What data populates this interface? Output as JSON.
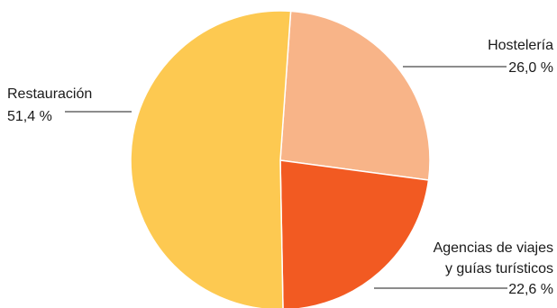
{
  "chart_data": {
    "type": "pie",
    "title": "",
    "start_angle_deg": 4,
    "direction": "clockwise",
    "slices": [
      {
        "label": "Hostelería",
        "label_lines": [
          "Hostelería"
        ],
        "value": 26.0,
        "value_text": "26,0 %",
        "color": "#F8B488"
      },
      {
        "label": "Agencias de viajes y guías turísticos",
        "label_lines": [
          "Agencias de viajes",
          "y guías turísticos"
        ],
        "value": 22.6,
        "value_text": "22,6 %",
        "color": "#F25A22"
      },
      {
        "label": "Restauración",
        "label_lines": [
          "Restauración"
        ],
        "value": 51.4,
        "value_text": "51,4 %",
        "color": "#FDC951"
      }
    ]
  }
}
